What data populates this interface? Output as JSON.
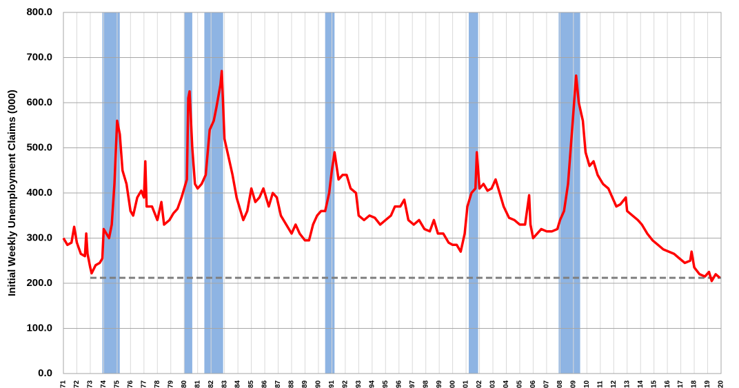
{
  "chart_data": {
    "type": "line",
    "y_label": "Initial Weekly Unemployment Claims (000)",
    "xlim": [
      1971,
      2020
    ],
    "ylim": [
      0,
      800
    ],
    "yticks": [
      {
        "value": 0,
        "label": "0.0"
      },
      {
        "value": 100,
        "label": "100.0"
      },
      {
        "value": 200,
        "label": "200.0"
      },
      {
        "value": 300,
        "label": "300.0"
      },
      {
        "value": 400,
        "label": "400.0"
      },
      {
        "value": 500,
        "label": "500.0"
      },
      {
        "value": 600,
        "label": "600.0"
      },
      {
        "value": 700,
        "label": "700.0"
      },
      {
        "value": 800,
        "label": "800.0"
      }
    ],
    "xticks": [
      {
        "value": 1971,
        "label": "71"
      },
      {
        "value": 1972,
        "label": "72"
      },
      {
        "value": 1973,
        "label": "73"
      },
      {
        "value": 1974,
        "label": "74"
      },
      {
        "value": 1975,
        "label": "75"
      },
      {
        "value": 1976,
        "label": "76"
      },
      {
        "value": 1977,
        "label": "77"
      },
      {
        "value": 1978,
        "label": "78"
      },
      {
        "value": 1979,
        "label": "79"
      },
      {
        "value": 1980,
        "label": "80"
      },
      {
        "value": 1981,
        "label": "81"
      },
      {
        "value": 1982,
        "label": "82"
      },
      {
        "value": 1983,
        "label": "83"
      },
      {
        "value": 1984,
        "label": "84"
      },
      {
        "value": 1985,
        "label": "85"
      },
      {
        "value": 1986,
        "label": "86"
      },
      {
        "value": 1987,
        "label": "87"
      },
      {
        "value": 1988,
        "label": "88"
      },
      {
        "value": 1989,
        "label": "89"
      },
      {
        "value": 1990,
        "label": "90"
      },
      {
        "value": 1991,
        "label": "91"
      },
      {
        "value": 1992,
        "label": "92"
      },
      {
        "value": 1993,
        "label": "93"
      },
      {
        "value": 1994,
        "label": "94"
      },
      {
        "value": 1995,
        "label": "95"
      },
      {
        "value": 1996,
        "label": "96"
      },
      {
        "value": 1997,
        "label": "97"
      },
      {
        "value": 1998,
        "label": "98"
      },
      {
        "value": 1999,
        "label": "99"
      },
      {
        "value": 2000,
        "label": "00"
      },
      {
        "value": 2001,
        "label": "01"
      },
      {
        "value": 2002,
        "label": "02"
      },
      {
        "value": 2003,
        "label": "03"
      },
      {
        "value": 2004,
        "label": "04"
      },
      {
        "value": 2005,
        "label": "05"
      },
      {
        "value": 2006,
        "label": "06"
      },
      {
        "value": 2007,
        "label": "07"
      },
      {
        "value": 2008,
        "label": "08"
      },
      {
        "value": 2009,
        "label": "09"
      },
      {
        "value": 2010,
        "label": "10"
      },
      {
        "value": 2011,
        "label": "11"
      },
      {
        "value": 2012,
        "label": "12"
      },
      {
        "value": 2013,
        "label": "13"
      },
      {
        "value": 2014,
        "label": "14"
      },
      {
        "value": 2015,
        "label": "15"
      },
      {
        "value": 2016,
        "label": "16"
      },
      {
        "value": 2017,
        "label": "17"
      },
      {
        "value": 2018,
        "label": "18"
      },
      {
        "value": 2019,
        "label": "19"
      },
      {
        "value": 2020,
        "label": "20"
      }
    ],
    "grid": true,
    "recessions": {
      "color": "#8eb4e3",
      "starts": [
        1973.9,
        1980.0,
        1981.5,
        1990.5,
        2001.2,
        2007.9
      ],
      "ends": [
        1975.2,
        1980.6,
        1982.9,
        1991.2,
        2001.9,
        2009.5
      ]
    },
    "reference_line": {
      "value": 212,
      "start": 1973,
      "end": 2020,
      "color": "#7f7f7f"
    },
    "x": [
      1971.0,
      1971.3,
      1971.6,
      1971.8,
      1972.0,
      1972.3,
      1972.6,
      1972.7,
      1972.8,
      1973.0,
      1973.1,
      1973.4,
      1973.7,
      1973.9,
      1974.0,
      1974.4,
      1974.6,
      1974.8,
      1975.0,
      1975.2,
      1975.4,
      1975.7,
      1976.0,
      1976.2,
      1976.5,
      1976.8,
      1977.0,
      1977.1,
      1977.2,
      1977.6,
      1978.0,
      1978.3,
      1978.5,
      1978.9,
      1979.2,
      1979.5,
      1979.8,
      1980.0,
      1980.2,
      1980.3,
      1980.4,
      1980.6,
      1980.8,
      1981.0,
      1981.3,
      1981.6,
      1981.9,
      1982.2,
      1982.4,
      1982.7,
      1982.8,
      1983.0,
      1983.3,
      1983.6,
      1983.9,
      1984.2,
      1984.4,
      1984.7,
      1985.0,
      1985.3,
      1985.6,
      1985.9,
      1986.3,
      1986.6,
      1986.9,
      1987.2,
      1987.6,
      1988.0,
      1988.3,
      1988.6,
      1989.0,
      1989.3,
      1989.6,
      1989.9,
      1990.2,
      1990.5,
      1990.8,
      1991.0,
      1991.2,
      1991.5,
      1991.8,
      1992.1,
      1992.4,
      1992.8,
      1993.0,
      1993.4,
      1993.8,
      1994.2,
      1994.6,
      1995.0,
      1995.4,
      1995.7,
      1996.1,
      1996.4,
      1996.7,
      1997.1,
      1997.5,
      1997.9,
      1998.3,
      1998.6,
      1998.9,
      1999.3,
      1999.7,
      2000.0,
      2000.3,
      2000.6,
      2000.9,
      2001.1,
      2001.4,
      2001.7,
      2001.8,
      2002.0,
      2002.3,
      2002.6,
      2002.9,
      2003.2,
      2003.5,
      2003.8,
      2004.2,
      2004.6,
      2005.0,
      2005.4,
      2005.7,
      2005.8,
      2006.0,
      2006.3,
      2006.6,
      2007.0,
      2007.4,
      2007.8,
      2008.0,
      2008.3,
      2008.6,
      2008.9,
      2009.2,
      2009.4,
      2009.7,
      2009.9,
      2010.2,
      2010.5,
      2010.8,
      2011.2,
      2011.6,
      2011.9,
      2012.2,
      2012.5,
      2012.9,
      2013.0,
      2013.4,
      2013.8,
      2014.1,
      2014.5,
      2014.9,
      2015.3,
      2015.7,
      2016.1,
      2016.5,
      2016.9,
      2017.3,
      2017.7,
      2017.8,
      2018.0,
      2018.4,
      2018.8,
      2019.1,
      2019.3,
      2019.6,
      2019.9
    ],
    "series": [
      {
        "color": "#ff0000",
        "values": [
          300,
          285,
          290,
          325,
          290,
          265,
          260,
          310,
          265,
          235,
          222,
          240,
          245,
          255,
          320,
          300,
          330,
          420,
          560,
          530,
          450,
          420,
          360,
          350,
          390,
          405,
          390,
          470,
          370,
          370,
          340,
          380,
          330,
          340,
          355,
          365,
          390,
          410,
          430,
          610,
          625,
          500,
          420,
          410,
          420,
          440,
          540,
          560,
          590,
          640,
          670,
          520,
          480,
          440,
          390,
          360,
          340,
          360,
          410,
          380,
          390,
          410,
          370,
          400,
          390,
          350,
          330,
          310,
          330,
          310,
          295,
          295,
          330,
          350,
          360,
          360,
          400,
          450,
          490,
          430,
          440,
          440,
          410,
          400,
          350,
          340,
          350,
          345,
          330,
          340,
          350,
          370,
          370,
          385,
          340,
          330,
          340,
          320,
          315,
          340,
          310,
          310,
          290,
          285,
          285,
          270,
          310,
          370,
          400,
          410,
          490,
          410,
          420,
          405,
          410,
          430,
          400,
          370,
          345,
          340,
          330,
          330,
          395,
          330,
          300,
          310,
          320,
          315,
          315,
          320,
          340,
          360,
          420,
          540,
          660,
          600,
          560,
          490,
          460,
          470,
          440,
          420,
          410,
          390,
          370,
          375,
          390,
          360,
          350,
          340,
          330,
          310,
          295,
          285,
          275,
          270,
          265,
          255,
          245,
          250,
          270,
          235,
          220,
          215,
          225,
          205,
          220,
          212
        ]
      }
    ]
  }
}
